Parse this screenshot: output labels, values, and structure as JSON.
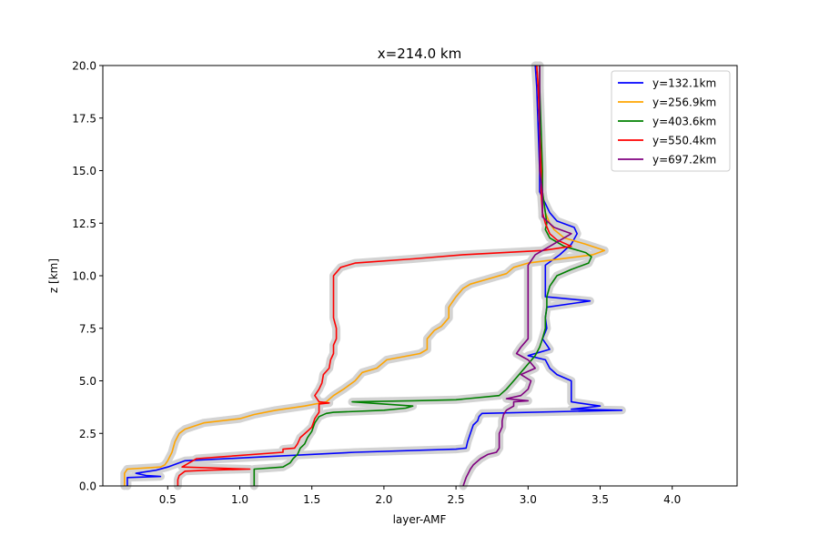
{
  "chart_data": {
    "type": "line",
    "title": "x=214.0 km",
    "xlabel": "layer-AMF",
    "ylabel": "z [km]",
    "xlim": [
      0.05,
      4.45
    ],
    "ylim": [
      0,
      20
    ],
    "xticks": [
      0.5,
      1.0,
      1.5,
      2.0,
      2.5,
      3.0,
      3.5,
      4.0
    ],
    "xtick_labels": [
      "0.5",
      "1.0",
      "1.5",
      "2.0",
      "2.5",
      "3.0",
      "3.5",
      "4.0"
    ],
    "yticks": [
      0,
      2.5,
      5,
      7.5,
      10,
      12.5,
      15,
      17.5,
      20
    ],
    "ytick_labels": [
      "0.0",
      "2.5",
      "5.0",
      "7.5",
      "10.0",
      "12.5",
      "15.0",
      "17.5",
      "20.0"
    ],
    "grid": false,
    "legend_position": "top-right",
    "band_color": "#d3d3d3",
    "series": [
      {
        "name": "y=132.1km",
        "color": "#0000ff",
        "points": [
          [
            0.22,
            0
          ],
          [
            0.22,
            0.4
          ],
          [
            0.45,
            0.45
          ],
          [
            0.35,
            0.5
          ],
          [
            0.28,
            0.6
          ],
          [
            0.42,
            0.75
          ],
          [
            0.5,
            0.9
          ],
          [
            0.58,
            1.1
          ],
          [
            0.62,
            1.2
          ],
          [
            1.2,
            1.4
          ],
          [
            1.8,
            1.6
          ],
          [
            2.5,
            1.75
          ],
          [
            2.57,
            1.8
          ],
          [
            2.58,
            2.1
          ],
          [
            2.6,
            2.5
          ],
          [
            2.62,
            2.9
          ],
          [
            2.65,
            3.1
          ],
          [
            2.66,
            3.3
          ],
          [
            2.68,
            3.45
          ],
          [
            3.65,
            3.6
          ],
          [
            3.3,
            3.65
          ],
          [
            3.5,
            3.8
          ],
          [
            3.3,
            4.0
          ],
          [
            3.3,
            4.5
          ],
          [
            3.3,
            5.0
          ],
          [
            3.2,
            5.3
          ],
          [
            3.15,
            5.6
          ],
          [
            3.12,
            6.0
          ],
          [
            3.0,
            6.2
          ],
          [
            3.15,
            6.5
          ],
          [
            3.1,
            7.0
          ],
          [
            3.13,
            7.5
          ],
          [
            3.12,
            8.0
          ],
          [
            3.13,
            8.5
          ],
          [
            3.43,
            8.8
          ],
          [
            3.12,
            9.0
          ],
          [
            3.12,
            9.5
          ],
          [
            3.12,
            10.0
          ],
          [
            3.12,
            10.5
          ],
          [
            3.22,
            11.0
          ],
          [
            3.3,
            11.5
          ],
          [
            3.34,
            12.0
          ],
          [
            3.32,
            12.3
          ],
          [
            3.2,
            12.6
          ],
          [
            3.15,
            13.0
          ],
          [
            3.08,
            14.0
          ],
          [
            3.08,
            15.0
          ],
          [
            3.07,
            17.0
          ],
          [
            3.06,
            19.0
          ],
          [
            3.05,
            20.0
          ]
        ]
      },
      {
        "name": "y=256.9km",
        "color": "#ffa500",
        "points": [
          [
            0.2,
            0
          ],
          [
            0.2,
            0.6
          ],
          [
            0.22,
            0.8
          ],
          [
            0.45,
            0.9
          ],
          [
            0.48,
            1.0
          ],
          [
            0.5,
            1.2
          ],
          [
            0.53,
            1.6
          ],
          [
            0.55,
            2.1
          ],
          [
            0.58,
            2.5
          ],
          [
            0.62,
            2.7
          ],
          [
            0.75,
            3.0
          ],
          [
            1.0,
            3.2
          ],
          [
            1.1,
            3.4
          ],
          [
            1.25,
            3.6
          ],
          [
            1.45,
            3.8
          ],
          [
            1.6,
            4.0
          ],
          [
            1.65,
            4.3
          ],
          [
            1.72,
            4.6
          ],
          [
            1.8,
            5.0
          ],
          [
            1.85,
            5.4
          ],
          [
            1.95,
            5.6
          ],
          [
            2.02,
            6.0
          ],
          [
            2.25,
            6.3
          ],
          [
            2.3,
            6.5
          ],
          [
            2.3,
            7.0
          ],
          [
            2.35,
            7.4
          ],
          [
            2.4,
            7.6
          ],
          [
            2.45,
            8.0
          ],
          [
            2.45,
            8.5
          ],
          [
            2.5,
            9.0
          ],
          [
            2.55,
            9.4
          ],
          [
            2.6,
            9.6
          ],
          [
            2.7,
            9.8
          ],
          [
            2.85,
            10.1
          ],
          [
            2.9,
            10.4
          ],
          [
            3.0,
            10.6
          ],
          [
            3.45,
            11.0
          ],
          [
            3.53,
            11.2
          ],
          [
            3.4,
            11.5
          ],
          [
            3.25,
            11.8
          ],
          [
            3.18,
            12.2
          ],
          [
            3.15,
            12.5
          ],
          [
            3.12,
            13.0
          ],
          [
            3.1,
            14.0
          ],
          [
            3.09,
            15.0
          ],
          [
            3.08,
            17.0
          ],
          [
            3.07,
            19.0
          ],
          [
            3.06,
            20.0
          ]
        ]
      },
      {
        "name": "y=403.6km",
        "color": "#008000",
        "points": [
          [
            1.1,
            0
          ],
          [
            1.1,
            0.5
          ],
          [
            1.1,
            0.8
          ],
          [
            1.3,
            0.9
          ],
          [
            1.35,
            1.1
          ],
          [
            1.37,
            1.3
          ],
          [
            1.4,
            1.5
          ],
          [
            1.42,
            1.8
          ],
          [
            1.45,
            2.0
          ],
          [
            1.47,
            2.3
          ],
          [
            1.5,
            2.6
          ],
          [
            1.52,
            3.0
          ],
          [
            1.55,
            3.3
          ],
          [
            1.6,
            3.45
          ],
          [
            1.65,
            3.5
          ],
          [
            2.0,
            3.6
          ],
          [
            2.15,
            3.7
          ],
          [
            2.2,
            3.8
          ],
          [
            1.78,
            4.0
          ],
          [
            2.2,
            4.05
          ],
          [
            2.5,
            4.1
          ],
          [
            2.8,
            4.3
          ],
          [
            2.85,
            4.6
          ],
          [
            2.9,
            5.0
          ],
          [
            2.95,
            5.4
          ],
          [
            3.0,
            5.8
          ],
          [
            3.05,
            6.2
          ],
          [
            3.08,
            6.6
          ],
          [
            3.1,
            7.0
          ],
          [
            3.12,
            7.5
          ],
          [
            3.12,
            8.0
          ],
          [
            3.13,
            8.5
          ],
          [
            3.13,
            9.0
          ],
          [
            3.15,
            9.5
          ],
          [
            3.2,
            10.0
          ],
          [
            3.3,
            10.3
          ],
          [
            3.42,
            10.6
          ],
          [
            3.44,
            10.9
          ],
          [
            3.4,
            11.1
          ],
          [
            3.25,
            11.4
          ],
          [
            3.15,
            11.8
          ],
          [
            3.12,
            12.2
          ],
          [
            3.13,
            12.5
          ],
          [
            3.12,
            13.0
          ],
          [
            3.1,
            14.0
          ],
          [
            3.1,
            15.0
          ],
          [
            3.09,
            17.0
          ],
          [
            3.08,
            19.0
          ],
          [
            3.08,
            20.0
          ]
        ]
      },
      {
        "name": "y=550.4km",
        "color": "#ff0000",
        "points": [
          [
            0.57,
            0
          ],
          [
            0.57,
            0.3
          ],
          [
            0.58,
            0.5
          ],
          [
            0.62,
            0.7
          ],
          [
            0.78,
            0.75
          ],
          [
            1.07,
            0.8
          ],
          [
            0.6,
            0.9
          ],
          [
            0.65,
            1.1
          ],
          [
            0.7,
            1.3
          ],
          [
            0.9,
            1.4
          ],
          [
            1.3,
            1.6
          ],
          [
            1.3,
            1.75
          ],
          [
            1.38,
            1.8
          ],
          [
            1.4,
            2.0
          ],
          [
            1.42,
            2.3
          ],
          [
            1.47,
            2.6
          ],
          [
            1.5,
            2.8
          ],
          [
            1.52,
            3.2
          ],
          [
            1.55,
            3.5
          ],
          [
            1.55,
            3.9
          ],
          [
            1.62,
            3.95
          ],
          [
            1.55,
            4.0
          ],
          [
            1.52,
            4.3
          ],
          [
            1.55,
            4.6
          ],
          [
            1.57,
            4.9
          ],
          [
            1.58,
            5.3
          ],
          [
            1.62,
            5.6
          ],
          [
            1.63,
            6.0
          ],
          [
            1.65,
            6.3
          ],
          [
            1.65,
            6.7
          ],
          [
            1.67,
            7.0
          ],
          [
            1.67,
            7.5
          ],
          [
            1.65,
            8.0
          ],
          [
            1.65,
            8.5
          ],
          [
            1.65,
            9.0
          ],
          [
            1.65,
            9.5
          ],
          [
            1.65,
            10.0
          ],
          [
            1.7,
            10.4
          ],
          [
            1.8,
            10.6
          ],
          [
            2.2,
            10.8
          ],
          [
            2.55,
            11.0
          ],
          [
            3.1,
            11.2
          ],
          [
            3.3,
            11.4
          ],
          [
            3.2,
            11.7
          ],
          [
            3.15,
            12.0
          ],
          [
            3.12,
            12.5
          ],
          [
            3.1,
            13.0
          ],
          [
            3.09,
            14.0
          ],
          [
            3.09,
            15.0
          ],
          [
            3.08,
            17.0
          ],
          [
            3.07,
            19.0
          ],
          [
            3.06,
            20.0
          ]
        ]
      },
      {
        "name": "y=697.2km",
        "color": "#800080",
        "points": [
          [
            2.55,
            0
          ],
          [
            2.57,
            0.4
          ],
          [
            2.6,
            0.8
          ],
          [
            2.62,
            1.0
          ],
          [
            2.67,
            1.3
          ],
          [
            2.72,
            1.5
          ],
          [
            2.78,
            1.6
          ],
          [
            2.8,
            1.8
          ],
          [
            2.8,
            2.2
          ],
          [
            2.8,
            2.5
          ],
          [
            2.82,
            2.8
          ],
          [
            2.82,
            3.1
          ],
          [
            2.83,
            3.4
          ],
          [
            2.85,
            3.6
          ],
          [
            2.9,
            3.8
          ],
          [
            2.9,
            4.0
          ],
          [
            3.0,
            4.05
          ],
          [
            2.85,
            4.15
          ],
          [
            2.95,
            4.3
          ],
          [
            3.0,
            4.6
          ],
          [
            3.02,
            5.0
          ],
          [
            2.95,
            5.3
          ],
          [
            3.05,
            5.6
          ],
          [
            3.0,
            6.0
          ],
          [
            2.92,
            6.3
          ],
          [
            2.95,
            6.6
          ],
          [
            3.0,
            7.0
          ],
          [
            3.0,
            7.6
          ],
          [
            3.0,
            8.0
          ],
          [
            3.0,
            8.5
          ],
          [
            3.0,
            9.0
          ],
          [
            3.0,
            9.5
          ],
          [
            3.0,
            10.0
          ],
          [
            3.0,
            10.5
          ],
          [
            3.05,
            11.0
          ],
          [
            3.15,
            11.4
          ],
          [
            3.25,
            11.8
          ],
          [
            3.3,
            12.0
          ],
          [
            3.18,
            12.3
          ],
          [
            3.1,
            12.8
          ],
          [
            3.1,
            14.0
          ],
          [
            3.08,
            15.0
          ],
          [
            3.08,
            17.0
          ],
          [
            3.08,
            19.0
          ],
          [
            3.08,
            20.0
          ]
        ]
      }
    ]
  }
}
